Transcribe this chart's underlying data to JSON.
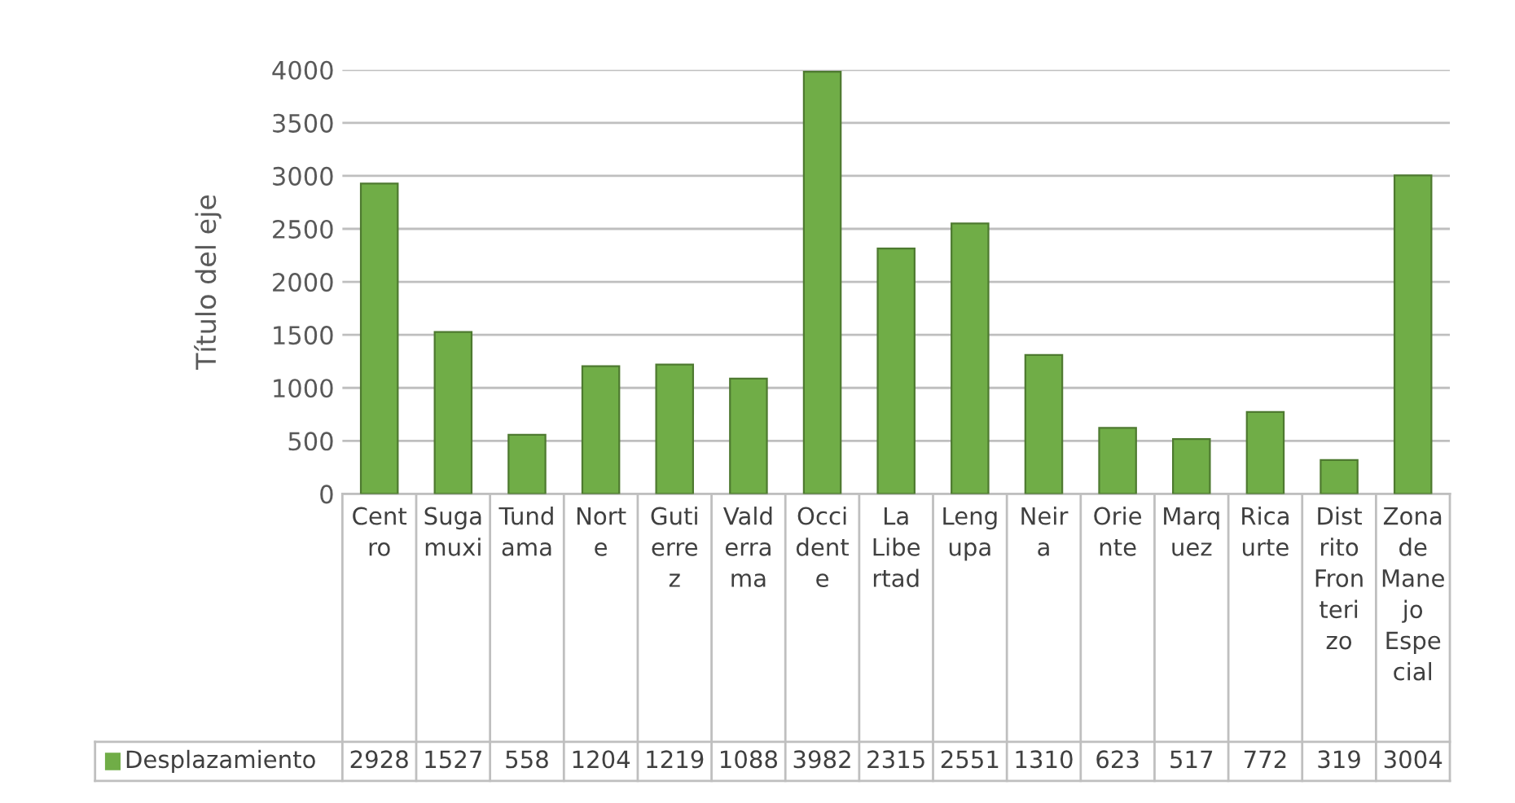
{
  "chart_data": {
    "type": "bar",
    "ylabel": "Título del eje",
    "categories": [
      "Centro",
      "Sugamuxi",
      "Tundama",
      "Norte",
      "Gutierrez",
      "Valderrama",
      "Occidente",
      "La Libertad",
      "Lengupa",
      "Neira",
      "Oriente",
      "Marquez",
      "Ricaurte",
      "Distrito Fronterizo",
      "Zona de Manejo Especial"
    ],
    "series": [
      {
        "name": "Desplazamiento",
        "color": "#70ad47",
        "values": [
          2928,
          1527,
          558,
          1204,
          1219,
          1088,
          3982,
          2315,
          2551,
          1310,
          623,
          517,
          772,
          319,
          3004
        ]
      }
    ],
    "ylim": [
      0,
      4000
    ],
    "yticks": [
      0,
      500,
      1000,
      1500,
      2000,
      2500,
      3000,
      3500,
      4000
    ],
    "grid": "y",
    "legend": "bottom",
    "data_labels": true
  }
}
